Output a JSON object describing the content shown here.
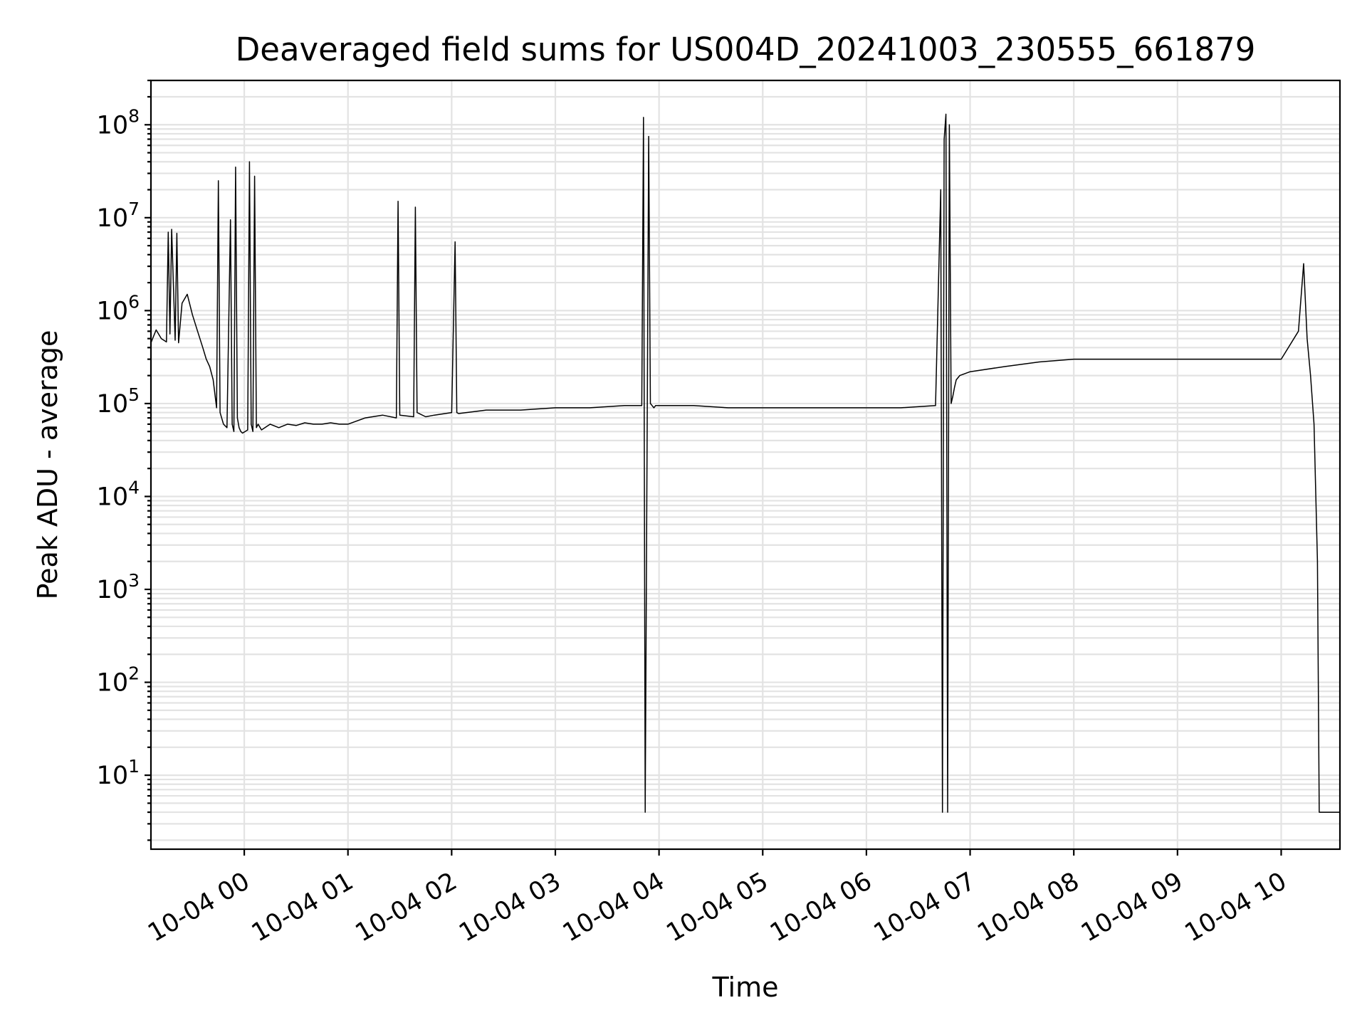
{
  "chart_data": {
    "type": "line",
    "title": "Deaveraged field sums for US004D_20241003_230555_661879",
    "xlabel": "Time",
    "ylabel": "Peak ADU - average",
    "yscale": "log",
    "ylim": [
      1.6,
      300000000
    ],
    "xlim": [
      "2024-10-03 23:06",
      "2024-10-04 10:34"
    ],
    "grid": "both",
    "line_color": "#000000",
    "xticks": [
      {
        "t": "2024-10-04 00:00",
        "label": "10-04 00"
      },
      {
        "t": "2024-10-04 01:00",
        "label": "10-04 01"
      },
      {
        "t": "2024-10-04 02:00",
        "label": "10-04 02"
      },
      {
        "t": "2024-10-04 03:00",
        "label": "10-04 03"
      },
      {
        "t": "2024-10-04 04:00",
        "label": "10-04 04"
      },
      {
        "t": "2024-10-04 05:00",
        "label": "10-04 05"
      },
      {
        "t": "2024-10-04 06:00",
        "label": "10-04 06"
      },
      {
        "t": "2024-10-04 07:00",
        "label": "10-04 07"
      },
      {
        "t": "2024-10-04 08:00",
        "label": "10-04 08"
      },
      {
        "t": "2024-10-04 09:00",
        "label": "10-04 09"
      },
      {
        "t": "2024-10-04 10:00",
        "label": "10-04 10"
      }
    ],
    "yticks": [
      {
        "value": 10,
        "base": "10",
        "exp": "1"
      },
      {
        "value": 100,
        "base": "10",
        "exp": "2"
      },
      {
        "value": 1000,
        "base": "10",
        "exp": "3"
      },
      {
        "value": 10000,
        "base": "10",
        "exp": "4"
      },
      {
        "value": 100000,
        "base": "10",
        "exp": "5"
      },
      {
        "value": 1000000,
        "base": "10",
        "exp": "6"
      },
      {
        "value": 10000000,
        "base": "10",
        "exp": "7"
      },
      {
        "value": 100000000,
        "base": "10",
        "exp": "8"
      }
    ],
    "series": [
      {
        "x": [
          "2024-10-03 23:06",
          "2024-10-03 23:09",
          "2024-10-03 23:12",
          "2024-10-03 23:15",
          "2024-10-03 23:16",
          "2024-10-03 23:17",
          "2024-10-03 23:18",
          "2024-10-03 23:20",
          "2024-10-03 23:21",
          "2024-10-03 23:22",
          "2024-10-03 23:24",
          "2024-10-03 23:27",
          "2024-10-03 23:30",
          "2024-10-03 23:33",
          "2024-10-03 23:36",
          "2024-10-03 23:38",
          "2024-10-03 23:40",
          "2024-10-03 23:42",
          "2024-10-03 23:44",
          "2024-10-03 23:45",
          "2024-10-03 23:46",
          "2024-10-03 23:48",
          "2024-10-03 23:50",
          "2024-10-03 23:52",
          "2024-10-03 23:53",
          "2024-10-03 23:54",
          "2024-10-03 23:55",
          "2024-10-03 23:56",
          "2024-10-03 23:57",
          "2024-10-03 23:58",
          "2024-10-03 23:59",
          "2024-10-04 00:02",
          "2024-10-04 00:03",
          "2024-10-04 00:04",
          "2024-10-04 00:05",
          "2024-10-04 00:06",
          "2024-10-04 00:07",
          "2024-10-04 00:08",
          "2024-10-04 00:10",
          "2024-10-04 00:15",
          "2024-10-04 00:20",
          "2024-10-04 00:25",
          "2024-10-04 00:30",
          "2024-10-04 00:35",
          "2024-10-04 00:40",
          "2024-10-04 00:45",
          "2024-10-04 00:50",
          "2024-10-04 00:55",
          "2024-10-04 01:00",
          "2024-10-04 01:10",
          "2024-10-04 01:20",
          "2024-10-04 01:28",
          "2024-10-04 01:29",
          "2024-10-04 01:30",
          "2024-10-04 01:38",
          "2024-10-04 01:39",
          "2024-10-04 01:40",
          "2024-10-04 01:45",
          "2024-10-04 01:50",
          "2024-10-04 02:00",
          "2024-10-04 02:02",
          "2024-10-04 02:03",
          "2024-10-04 02:04",
          "2024-10-04 02:20",
          "2024-10-04 02:40",
          "2024-10-04 03:00",
          "2024-10-04 03:20",
          "2024-10-04 03:40",
          "2024-10-04 03:50",
          "2024-10-04 03:51",
          "2024-10-04 03:52",
          "2024-10-04 03:54",
          "2024-10-04 03:55",
          "2024-10-04 03:56",
          "2024-10-04 03:57",
          "2024-10-04 03:58",
          "2024-10-04 04:00",
          "2024-10-04 04:20",
          "2024-10-04 04:40",
          "2024-10-04 05:00",
          "2024-10-04 05:20",
          "2024-10-04 05:40",
          "2024-10-04 06:00",
          "2024-10-04 06:20",
          "2024-10-04 06:40",
          "2024-10-04 06:43",
          "2024-10-04 06:44",
          "2024-10-04 06:45",
          "2024-10-04 06:46",
          "2024-10-04 06:47",
          "2024-10-04 06:48",
          "2024-10-04 06:49",
          "2024-10-04 06:50",
          "2024-10-04 06:51",
          "2024-10-04 06:52",
          "2024-10-04 06:54",
          "2024-10-04 07:00",
          "2024-10-04 07:20",
          "2024-10-04 07:40",
          "2024-10-04 08:00",
          "2024-10-04 08:30",
          "2024-10-04 09:00",
          "2024-10-04 09:30",
          "2024-10-04 10:00",
          "2024-10-04 10:10",
          "2024-10-04 10:13",
          "2024-10-04 10:15",
          "2024-10-04 10:17",
          "2024-10-04 10:19",
          "2024-10-04 10:21",
          "2024-10-04 10:22",
          "2024-10-04 10:23",
          "2024-10-04 10:34"
        ],
        "y": [
          450000,
          620000,
          500000,
          460000,
          7000000,
          560000,
          7500000,
          480000,
          6800000,
          450000,
          1200000,
          1500000,
          900000,
          600000,
          400000,
          300000,
          250000,
          180000,
          90000,
          25000000,
          80000,
          60000,
          55000,
          9500000,
          60000,
          50000,
          35000000,
          70000,
          55000,
          50000,
          48000,
          52000,
          40000000,
          60000,
          50000,
          28000000,
          55000,
          60000,
          52000,
          60000,
          55000,
          60000,
          58000,
          62000,
          60000,
          60000,
          62000,
          60000,
          60000,
          70000,
          75000,
          70000,
          15000000,
          75000,
          72000,
          13000000,
          80000,
          72000,
          75000,
          80000,
          5500000,
          80000,
          78000,
          85000,
          85000,
          90000,
          90000,
          95000,
          95000,
          120000000,
          4,
          75000000,
          100000,
          95000,
          90000,
          95000,
          95000,
          95000,
          90000,
          90000,
          90000,
          90000,
          90000,
          90000,
          95000,
          20000000,
          4,
          70000000,
          130000000,
          4,
          100000000,
          100000,
          120000,
          150000,
          180000,
          200000,
          220000,
          250000,
          280000,
          300000,
          300000,
          300000,
          300000,
          300000,
          600000,
          3200000,
          500000,
          200000,
          60000,
          2000,
          4,
          4,
          4
        ]
      }
    ]
  }
}
